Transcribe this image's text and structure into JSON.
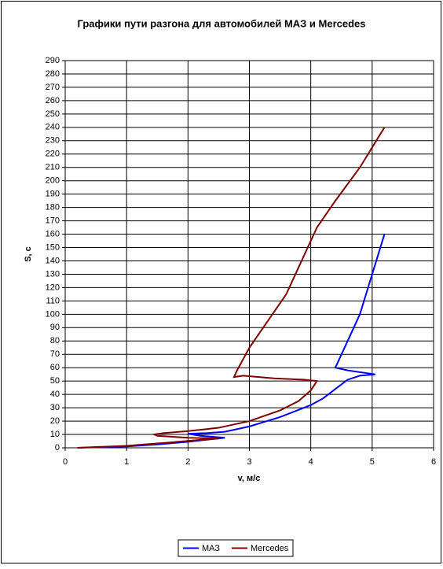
{
  "chart_data": {
    "type": "line",
    "title": "Графики  пути разгона для автомобилей МАЗ и Mercedes",
    "x_label": "v, м/с",
    "y_label": "S, c",
    "xlim": [
      0,
      6
    ],
    "xticks": [
      0,
      1,
      2,
      3,
      4,
      5,
      6
    ],
    "ylim": [
      0,
      290
    ],
    "yticks": [
      0,
      10,
      20,
      30,
      40,
      50,
      60,
      70,
      80,
      90,
      100,
      110,
      120,
      130,
      140,
      150,
      160,
      170,
      180,
      190,
      200,
      210,
      220,
      230,
      240,
      250,
      260,
      270,
      280,
      290
    ],
    "grid": true,
    "legend": "bottom",
    "series": [
      {
        "name": "МАЗ",
        "color": "#0000ff",
        "x": [
          0.2,
          1,
          1.5,
          2,
          2.6,
          2.2,
          2.0,
          2.3,
          2.6,
          3,
          3.5,
          4,
          4.2,
          4.4,
          4.6,
          4.8,
          5.05,
          4.6,
          4.4,
          4.6,
          4.8,
          5.0,
          5.2
        ],
        "values": [
          0,
          1,
          2.5,
          4.5,
          7.5,
          9,
          10.5,
          11,
          12,
          16,
          23,
          32,
          37,
          44,
          51,
          54,
          55,
          58,
          60,
          80,
          100,
          130,
          160
        ]
      },
      {
        "name": "Mercedes",
        "color": "#800000",
        "x": [
          0.2,
          1,
          1.7,
          2.2,
          2.5,
          2.0,
          1.5,
          1.45,
          1.6,
          2,
          2.5,
          3,
          3.5,
          3.8,
          4.0,
          4.1,
          3.9,
          3.4,
          2.9,
          2.75,
          2.8,
          3,
          3.3,
          3.6,
          3.9,
          4.1,
          4.4,
          4.8,
          5.2
        ],
        "values": [
          0,
          1.5,
          4,
          6,
          7,
          7.5,
          9,
          10,
          11,
          12.5,
          15,
          20,
          28,
          35,
          43,
          50,
          51,
          52,
          54,
          53,
          58,
          75,
          95,
          115,
          145,
          165,
          185,
          210,
          240
        ]
      }
    ]
  }
}
